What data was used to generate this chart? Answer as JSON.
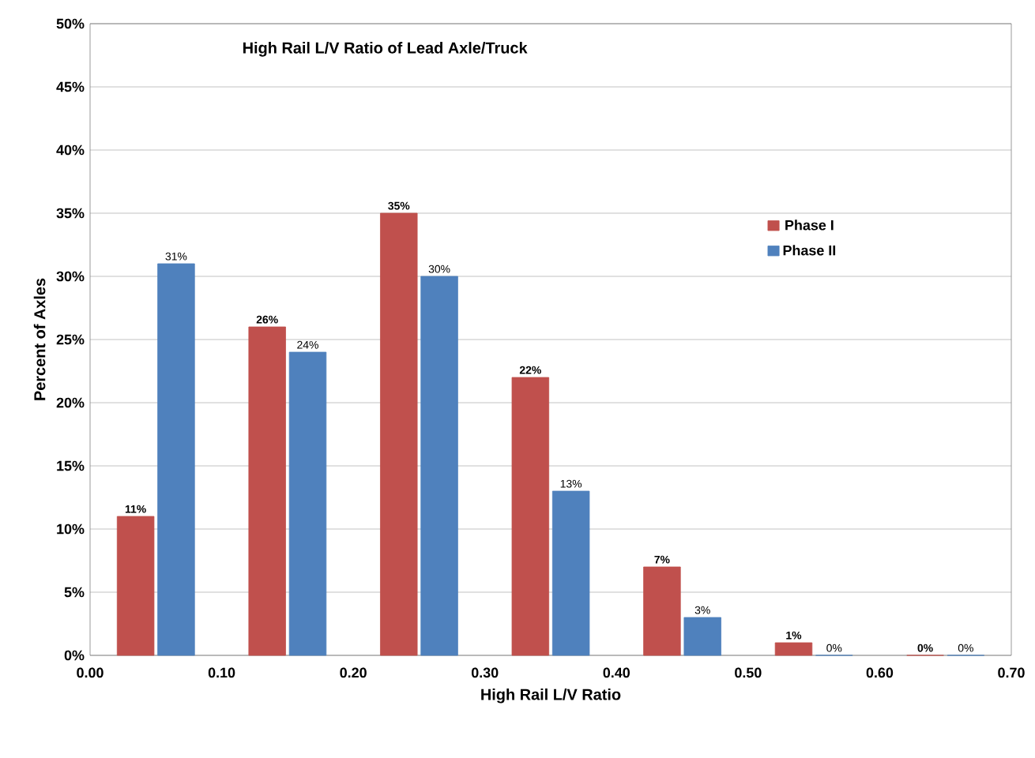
{
  "chart_data": {
    "type": "bar",
    "title": "High Rail L/V Ratio of Lead Axle/Truck",
    "xlabel": "High Rail L/V Ratio",
    "ylabel": "Percent of Axles",
    "x": [
      0.05,
      0.15,
      0.25,
      0.35,
      0.45,
      0.55,
      0.65
    ],
    "series": [
      {
        "name": "Phase I",
        "color": "#c0504d",
        "values": [
          11,
          26,
          35,
          22,
          7,
          1,
          0
        ],
        "value_labels": [
          "11%",
          "26%",
          "35%",
          "22%",
          "7%",
          "1%",
          "0%"
        ]
      },
      {
        "name": "Phase II",
        "color": "#4f81bd",
        "values": [
          31,
          24,
          30,
          13,
          3,
          0,
          0
        ],
        "value_labels": [
          "31%",
          "24%",
          "30%",
          "13%",
          "3%",
          "0%",
          "0%"
        ]
      }
    ],
    "xlim": [
      0,
      0.7
    ],
    "xticks": [
      {
        "value": 0,
        "label": "0.00"
      },
      {
        "value": 0.1,
        "label": "0.10"
      },
      {
        "value": 0.2,
        "label": "0.20"
      },
      {
        "value": 0.3,
        "label": "0.30"
      },
      {
        "value": 0.4,
        "label": "0.40"
      },
      {
        "value": 0.5,
        "label": "0.50"
      },
      {
        "value": 0.6,
        "label": "0.60"
      },
      {
        "value": 0.7,
        "label": "0.70"
      }
    ],
    "ylim": [
      0,
      50
    ],
    "yticks": [
      {
        "value": 0,
        "label": "0%"
      },
      {
        "value": 5,
        "label": "5%"
      },
      {
        "value": 10,
        "label": "10%"
      },
      {
        "value": 15,
        "label": "15%"
      },
      {
        "value": 20,
        "label": "20%"
      },
      {
        "value": 25,
        "label": "25%"
      },
      {
        "value": 30,
        "label": "30%"
      },
      {
        "value": 35,
        "label": "35%"
      },
      {
        "value": 40,
        "label": "40%"
      },
      {
        "value": 45,
        "label": "45%"
      },
      {
        "value": 50,
        "label": "50%"
      }
    ],
    "grid": "y",
    "legend": "right"
  }
}
